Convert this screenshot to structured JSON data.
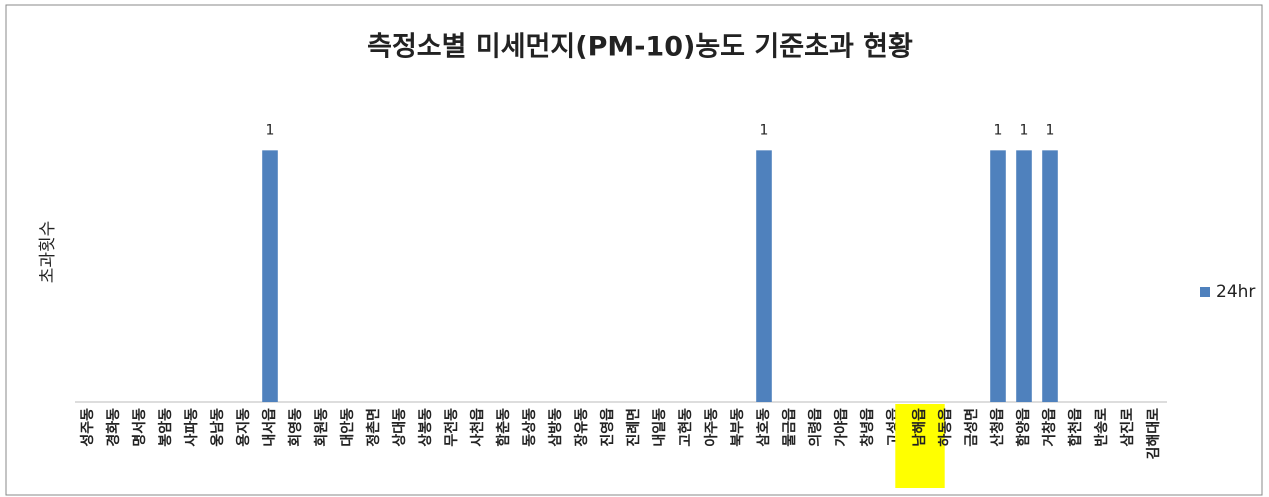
{
  "chart_data": {
    "type": "bar",
    "title": "측정소별 미세먼지(PM-10)농도 기준초과 현황",
    "y_label": "초과횟수",
    "categories": [
      "성주동",
      "경화동",
      "명서동",
      "봉암동",
      "사파동",
      "웅남동",
      "용지동",
      "내서읍",
      "회영동",
      "회원동",
      "대안동",
      "정촌면",
      "상대동",
      "상봉동",
      "무전동",
      "사천읍",
      "함춘동",
      "동상동",
      "삼방동",
      "장유동",
      "진영읍",
      "진례면",
      "내일동",
      "고현동",
      "아주동",
      "북부동",
      "삼호동",
      "물금읍",
      "의령읍",
      "가야읍",
      "창녕읍",
      "고성읍",
      "남해읍",
      "하동읍",
      "금성면",
      "산청읍",
      "함양읍",
      "거창읍",
      "합천읍",
      "반송로",
      "삼진로",
      "김해대로"
    ],
    "series": [
      {
        "name": "24hr",
        "color": "#4f81bd",
        "values": [
          0,
          0,
          0,
          0,
          0,
          0,
          0,
          1,
          0,
          0,
          0,
          0,
          0,
          0,
          0,
          0,
          0,
          0,
          0,
          0,
          0,
          0,
          0,
          0,
          0,
          0,
          1,
          0,
          0,
          0,
          0,
          0,
          0,
          0,
          0,
          1,
          1,
          1,
          0,
          0,
          0,
          0
        ]
      }
    ],
    "ylim": [
      0,
      1.2
    ],
    "legend": "right",
    "highlight_category": 32,
    "highlight_color": "#ffff00"
  }
}
